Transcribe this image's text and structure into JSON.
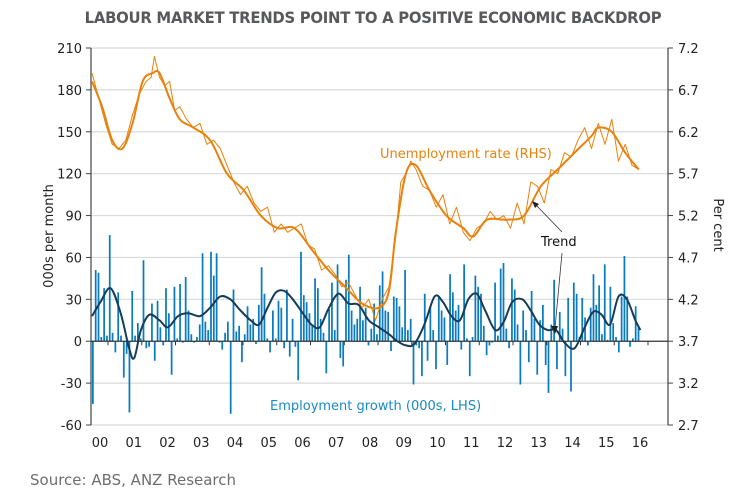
{
  "chart_data": {
    "type": "bar",
    "title": "LABOUR MARKET TRENDS POINT TO A POSITIVE ECONOMIC BACKDROP",
    "source": "Source: ABS, ANZ Research",
    "left_axis": {
      "label": "000s per month",
      "range": [
        -60,
        210
      ],
      "ticks": [
        "210",
        "180",
        "150",
        "120",
        "90",
        "60",
        "30",
        "0",
        "-30",
        "-60"
      ],
      "tick_values": [
        210,
        180,
        150,
        120,
        90,
        60,
        30,
        0,
        -30,
        -60
      ]
    },
    "right_axis": {
      "label": "Per cent",
      "range": [
        2.7,
        7.2
      ],
      "ticks": [
        "7.2",
        "6.7",
        "6.2",
        "5.7",
        "5.2",
        "4.7",
        "4.2",
        "3.7",
        "3.2",
        "2.7"
      ],
      "tick_values": [
        7.2,
        6.7,
        6.2,
        5.7,
        5.2,
        4.7,
        4.2,
        3.7,
        3.2,
        2.7
      ]
    },
    "x_axis": {
      "range": [
        2000.0,
        2017.0
      ],
      "ticks": [
        "00",
        "01",
        "02",
        "03",
        "04",
        "05",
        "06",
        "07",
        "08",
        "09",
        "10",
        "11",
        "12",
        "13",
        "14",
        "15",
        "16"
      ],
      "tick_values": [
        2000,
        2001,
        2002,
        2003,
        2004,
        2005,
        2006,
        2007,
        2008,
        2009,
        2010,
        2011,
        2012,
        2013,
        2014,
        2015,
        2016
      ]
    },
    "grid": true,
    "annotations": {
      "unemployment_label": "Unemployment rate (RHS)",
      "employment_label": "Employment growth (000s, LHS)",
      "trend_label": "Trend"
    },
    "colors": {
      "unemployment": "#e8820c",
      "employment_bars": "#0a7bbd",
      "employment_trend": "#163c5a",
      "grid": "#d9d9d9",
      "axis": "#444444",
      "employment_label": "#1a8ac7"
    },
    "series": [
      {
        "name": "Unemployment rate trend (RHS, %)",
        "axis": "right",
        "kind": "line",
        "x": [
          2000.0,
          2000.3,
          2000.6,
          2000.9,
          2001.2,
          2001.5,
          2001.8,
          2002.0,
          2002.3,
          2002.6,
          2003.0,
          2003.5,
          2004.0,
          2004.5,
          2005.0,
          2005.5,
          2006.0,
          2006.5,
          2007.0,
          2007.5,
          2008.0,
          2008.5,
          2008.8,
          2009.0,
          2009.3,
          2009.6,
          2010.0,
          2010.5,
          2011.0,
          2011.3,
          2011.7,
          2012.3,
          2012.8,
          2013.3,
          2013.8,
          2014.3,
          2014.8,
          2015.0,
          2015.4,
          2015.8,
          2016.2
        ],
        "values": [
          6.8,
          6.5,
          6.1,
          6.0,
          6.3,
          6.8,
          6.9,
          6.9,
          6.6,
          6.35,
          6.25,
          6.1,
          5.7,
          5.5,
          5.2,
          5.05,
          5.05,
          4.8,
          4.55,
          4.35,
          4.15,
          4.1,
          4.3,
          5.0,
          5.7,
          5.8,
          5.5,
          5.2,
          5.05,
          4.95,
          5.15,
          5.15,
          5.2,
          5.55,
          5.75,
          5.95,
          6.15,
          6.25,
          6.2,
          5.95,
          5.75
        ]
      },
      {
        "name": "Unemployment rate (RHS, %)",
        "axis": "right",
        "kind": "line",
        "x": [
          2000.0,
          2000.2,
          2000.4,
          2000.6,
          2000.8,
          2001.0,
          2001.2,
          2001.4,
          2001.6,
          2001.75,
          2001.85,
          2002.0,
          2002.15,
          2002.3,
          2002.45,
          2002.6,
          2002.8,
          2003.0,
          2003.2,
          2003.4,
          2003.6,
          2003.8,
          2004.0,
          2004.2,
          2004.4,
          2004.6,
          2004.8,
          2005.0,
          2005.2,
          2005.4,
          2005.6,
          2005.8,
          2006.0,
          2006.2,
          2006.4,
          2006.6,
          2006.8,
          2007.0,
          2007.2,
          2007.4,
          2007.6,
          2007.8,
          2008.0,
          2008.2,
          2008.4,
          2008.6,
          2008.8,
          2009.0,
          2009.15,
          2009.3,
          2009.45,
          2009.6,
          2009.8,
          2010.0,
          2010.2,
          2010.4,
          2010.6,
          2010.8,
          2011.0,
          2011.2,
          2011.4,
          2011.6,
          2011.8,
          2012.0,
          2012.2,
          2012.4,
          2012.6,
          2012.8,
          2013.0,
          2013.2,
          2013.4,
          2013.6,
          2013.8,
          2014.0,
          2014.2,
          2014.4,
          2014.6,
          2014.8,
          2015.0,
          2015.2,
          2015.4,
          2015.6,
          2015.8,
          2016.0,
          2016.2
        ],
        "values": [
          6.9,
          6.6,
          6.3,
          6.05,
          6.0,
          6.1,
          6.4,
          6.65,
          6.8,
          6.85,
          7.1,
          6.85,
          6.75,
          6.8,
          6.45,
          6.5,
          6.35,
          6.25,
          6.3,
          6.05,
          6.1,
          6.0,
          5.8,
          5.6,
          5.45,
          5.55,
          5.35,
          5.25,
          5.3,
          5.0,
          5.1,
          5.0,
          5.05,
          5.1,
          4.85,
          4.8,
          4.55,
          4.6,
          4.5,
          4.35,
          4.4,
          4.25,
          4.1,
          4.2,
          3.95,
          4.2,
          4.35,
          4.95,
          5.6,
          5.7,
          5.85,
          5.75,
          5.55,
          5.5,
          5.3,
          5.45,
          5.1,
          5.3,
          5.0,
          4.9,
          5.05,
          5.1,
          5.25,
          5.15,
          5.2,
          5.05,
          5.35,
          5.1,
          5.6,
          5.55,
          5.35,
          5.75,
          5.7,
          5.95,
          5.9,
          6.1,
          6.25,
          6.0,
          6.3,
          6.05,
          6.35,
          5.85,
          6.05,
          5.8,
          5.75
        ]
      },
      {
        "name": "Employment growth (000s, LHS)",
        "axis": "left",
        "kind": "bar",
        "x_start": 2000.0,
        "frequency": "monthly",
        "values": [
          -45,
          51,
          49,
          3,
          38,
          4,
          76,
          6,
          -8,
          35,
          4,
          -26,
          -9,
          -51,
          36,
          4,
          13,
          2,
          58,
          -5,
          -4,
          27,
          -14,
          29,
          10,
          -3,
          38,
          20,
          -24,
          39,
          2,
          41,
          -1,
          46,
          22,
          5,
          -1,
          3,
          12,
          63,
          14,
          8,
          64,
          47,
          63,
          -1,
          -6,
          6,
          14,
          -52,
          37,
          7,
          11,
          -15,
          5,
          25,
          12,
          16,
          -2,
          26,
          53,
          34,
          2,
          -8,
          22,
          2,
          29,
          24,
          -5,
          37,
          -11,
          16,
          -4,
          -28,
          64,
          33,
          28,
          20,
          11,
          45,
          38,
          16,
          6,
          -23,
          23,
          42,
          8,
          55,
          -12,
          -18,
          44,
          62,
          22,
          12,
          16,
          39,
          15,
          24,
          -3,
          9,
          27,
          5,
          40,
          50,
          22,
          21,
          -7,
          32,
          31,
          25,
          10,
          51,
          8,
          16,
          -31,
          -3,
          -5,
          -25,
          34,
          -14,
          25,
          8,
          -20,
          32,
          22,
          17,
          -17,
          48,
          35,
          22,
          26,
          -6,
          55,
          2,
          -25,
          3,
          47,
          39,
          34,
          11,
          -10,
          -3,
          -1,
          42,
          4,
          52,
          56,
          9,
          -5,
          45,
          37,
          12,
          -31,
          22,
          8,
          -15,
          36,
          16,
          -24,
          15,
          26,
          -17,
          -37,
          12,
          44,
          -20,
          21,
          9,
          -25,
          31,
          -36,
          42,
          34,
          3,
          31,
          17,
          -3,
          24,
          48,
          26,
          40,
          5,
          55,
          1,
          39,
          13,
          3,
          -8,
          32,
          61,
          32,
          -4,
          2,
          25,
          10
        ]
      },
      {
        "name": "Employment growth trend (000s, LHS)",
        "axis": "left",
        "kind": "line",
        "x": [
          2000.0,
          2000.25,
          2000.55,
          2000.85,
          2001.1,
          2001.25,
          2001.45,
          2001.7,
          2002.0,
          2002.25,
          2002.55,
          2002.85,
          2003.2,
          2003.5,
          2003.8,
          2004.1,
          2004.4,
          2004.7,
          2004.95,
          2005.2,
          2005.45,
          2005.7,
          2005.95,
          2006.25,
          2006.5,
          2006.75,
          2007.0,
          2007.3,
          2007.6,
          2007.9,
          2008.2,
          2008.5,
          2008.8,
          2009.05,
          2009.3,
          2009.55,
          2009.85,
          2010.15,
          2010.4,
          2010.65,
          2010.9,
          2011.15,
          2011.4,
          2011.65,
          2011.95,
          2012.2,
          2012.45,
          2012.75,
          2013.0,
          2013.25,
          2013.5,
          2013.75,
          2014.0,
          2014.3,
          2014.6,
          2014.85,
          2015.1,
          2015.35,
          2015.6,
          2015.85,
          2016.1,
          2016.25
        ],
        "values": [
          18,
          28,
          38,
          20,
          -5,
          -12,
          8,
          19,
          15,
          10,
          18,
          20,
          18,
          24,
          32,
          30,
          22,
          15,
          12,
          24,
          35,
          36,
          30,
          20,
          12,
          10,
          23,
          34,
          27,
          26,
          15,
          10,
          5,
          0,
          -3,
          -2,
          12,
          32,
          28,
          18,
          15,
          30,
          34,
          22,
          8,
          14,
          28,
          30,
          22,
          12,
          8,
          8,
          -1,
          -5,
          10,
          21,
          19,
          12,
          32,
          30,
          15,
          8
        ]
      }
    ]
  }
}
